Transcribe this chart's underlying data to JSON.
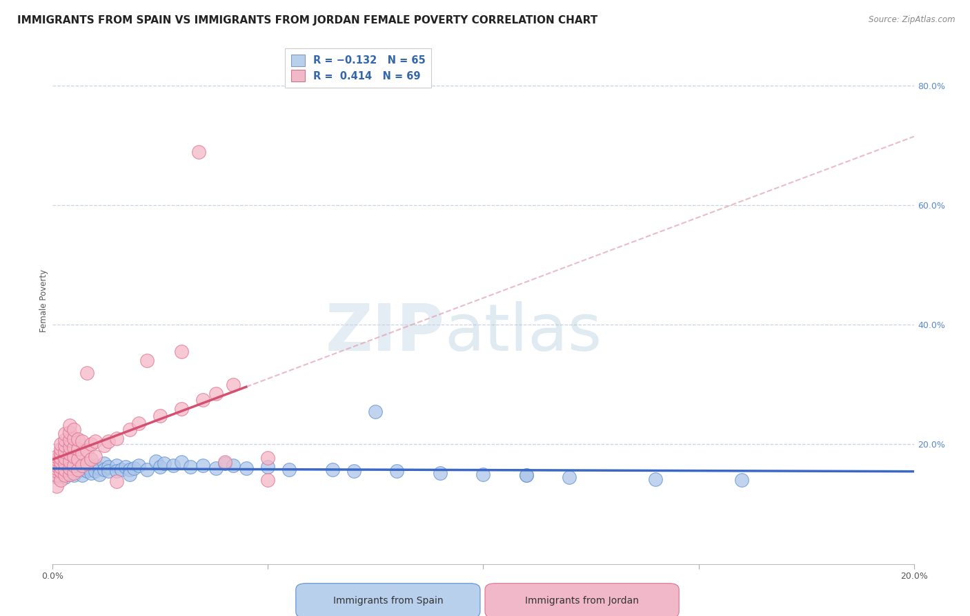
{
  "title": "IMMIGRANTS FROM SPAIN VS IMMIGRANTS FROM JORDAN FEMALE POVERTY CORRELATION CHART",
  "source_text": "Source: ZipAtlas.com",
  "ylabel": "Female Poverty",
  "xlim": [
    0.0,
    0.2
  ],
  "ylim": [
    0.0,
    0.88
  ],
  "ytick_labels_right": [
    "80.0%",
    "60.0%",
    "40.0%",
    "20.0%"
  ],
  "ytick_positions_right": [
    0.8,
    0.6,
    0.4,
    0.2
  ],
  "legend_r_spain": "-0.132",
  "legend_n_spain": "65",
  "legend_r_jordan": "0.414",
  "legend_n_jordan": "69",
  "color_spain_fill": "#aec6e8",
  "color_spain_edge": "#5b8fd4",
  "color_jordan_fill": "#f4b8c8",
  "color_jordan_edge": "#e07090",
  "color_spain_line": "#3a68c4",
  "color_jordan_line": "#d45070",
  "color_jordan_dashed": "#e0a0b0",
  "watermark_zip": "ZIP",
  "watermark_atlas": "atlas",
  "background_color": "#ffffff",
  "grid_color": "#c8d4e4",
  "legend_box_color_spain": "#b8d0ec",
  "legend_box_color_jordan": "#f0b8c8",
  "title_fontsize": 11,
  "axis_label_fontsize": 8.5,
  "tick_fontsize": 9,
  "spain_scatter": [
    [
      0.001,
      0.155
    ],
    [
      0.001,
      0.145
    ],
    [
      0.001,
      0.16
    ],
    [
      0.002,
      0.15
    ],
    [
      0.002,
      0.155
    ],
    [
      0.002,
      0.148
    ],
    [
      0.003,
      0.162
    ],
    [
      0.003,
      0.155
    ],
    [
      0.003,
      0.145
    ],
    [
      0.004,
      0.158
    ],
    [
      0.004,
      0.152
    ],
    [
      0.004,
      0.165
    ],
    [
      0.005,
      0.155
    ],
    [
      0.005,
      0.16
    ],
    [
      0.005,
      0.148
    ],
    [
      0.006,
      0.162
    ],
    [
      0.006,
      0.155
    ],
    [
      0.007,
      0.158
    ],
    [
      0.007,
      0.165
    ],
    [
      0.007,
      0.148
    ],
    [
      0.008,
      0.155
    ],
    [
      0.008,
      0.162
    ],
    [
      0.009,
      0.158
    ],
    [
      0.009,
      0.152
    ],
    [
      0.01,
      0.165
    ],
    [
      0.01,
      0.155
    ],
    [
      0.011,
      0.16
    ],
    [
      0.011,
      0.15
    ],
    [
      0.012,
      0.168
    ],
    [
      0.012,
      0.158
    ],
    [
      0.013,
      0.162
    ],
    [
      0.013,
      0.155
    ],
    [
      0.015,
      0.165
    ],
    [
      0.015,
      0.155
    ],
    [
      0.016,
      0.158
    ],
    [
      0.017,
      0.162
    ],
    [
      0.018,
      0.158
    ],
    [
      0.018,
      0.15
    ],
    [
      0.019,
      0.16
    ],
    [
      0.02,
      0.165
    ],
    [
      0.022,
      0.158
    ],
    [
      0.024,
      0.172
    ],
    [
      0.025,
      0.162
    ],
    [
      0.026,
      0.168
    ],
    [
      0.028,
      0.165
    ],
    [
      0.03,
      0.17
    ],
    [
      0.032,
      0.162
    ],
    [
      0.035,
      0.165
    ],
    [
      0.038,
      0.16
    ],
    [
      0.04,
      0.168
    ],
    [
      0.042,
      0.165
    ],
    [
      0.045,
      0.16
    ],
    [
      0.05,
      0.162
    ],
    [
      0.055,
      0.158
    ],
    [
      0.065,
      0.158
    ],
    [
      0.07,
      0.155
    ],
    [
      0.08,
      0.155
    ],
    [
      0.09,
      0.152
    ],
    [
      0.1,
      0.15
    ],
    [
      0.11,
      0.148
    ],
    [
      0.12,
      0.145
    ],
    [
      0.14,
      0.142
    ],
    [
      0.16,
      0.14
    ],
    [
      0.075,
      0.255
    ],
    [
      0.11,
      0.148
    ]
  ],
  "jordan_scatter": [
    [
      0.001,
      0.13
    ],
    [
      0.001,
      0.148
    ],
    [
      0.001,
      0.155
    ],
    [
      0.001,
      0.16
    ],
    [
      0.001,
      0.165
    ],
    [
      0.001,
      0.17
    ],
    [
      0.001,
      0.175
    ],
    [
      0.001,
      0.18
    ],
    [
      0.002,
      0.14
    ],
    [
      0.002,
      0.155
    ],
    [
      0.002,
      0.162
    ],
    [
      0.002,
      0.17
    ],
    [
      0.002,
      0.178
    ],
    [
      0.002,
      0.185
    ],
    [
      0.002,
      0.192
    ],
    [
      0.002,
      0.2
    ],
    [
      0.003,
      0.148
    ],
    [
      0.003,
      0.158
    ],
    [
      0.003,
      0.168
    ],
    [
      0.003,
      0.178
    ],
    [
      0.003,
      0.188
    ],
    [
      0.003,
      0.198
    ],
    [
      0.003,
      0.208
    ],
    [
      0.003,
      0.218
    ],
    [
      0.004,
      0.15
    ],
    [
      0.004,
      0.16
    ],
    [
      0.004,
      0.172
    ],
    [
      0.004,
      0.184
    ],
    [
      0.004,
      0.196
    ],
    [
      0.004,
      0.208
    ],
    [
      0.004,
      0.22
    ],
    [
      0.004,
      0.232
    ],
    [
      0.005,
      0.152
    ],
    [
      0.005,
      0.165
    ],
    [
      0.005,
      0.18
    ],
    [
      0.005,
      0.195
    ],
    [
      0.005,
      0.21
    ],
    [
      0.005,
      0.225
    ],
    [
      0.006,
      0.158
    ],
    [
      0.006,
      0.175
    ],
    [
      0.006,
      0.192
    ],
    [
      0.006,
      0.209
    ],
    [
      0.007,
      0.165
    ],
    [
      0.007,
      0.185
    ],
    [
      0.007,
      0.205
    ],
    [
      0.008,
      0.168
    ],
    [
      0.008,
      0.19
    ],
    [
      0.009,
      0.175
    ],
    [
      0.009,
      0.2
    ],
    [
      0.01,
      0.18
    ],
    [
      0.01,
      0.205
    ],
    [
      0.012,
      0.198
    ],
    [
      0.013,
      0.205
    ],
    [
      0.015,
      0.21
    ],
    [
      0.015,
      0.138
    ],
    [
      0.018,
      0.225
    ],
    [
      0.02,
      0.235
    ],
    [
      0.025,
      0.248
    ],
    [
      0.03,
      0.26
    ],
    [
      0.035,
      0.275
    ],
    [
      0.038,
      0.285
    ],
    [
      0.042,
      0.3
    ],
    [
      0.008,
      0.32
    ],
    [
      0.022,
      0.34
    ],
    [
      0.03,
      0.355
    ],
    [
      0.04,
      0.17
    ],
    [
      0.05,
      0.178
    ],
    [
      0.05,
      0.14
    ],
    [
      0.034,
      0.69
    ]
  ]
}
